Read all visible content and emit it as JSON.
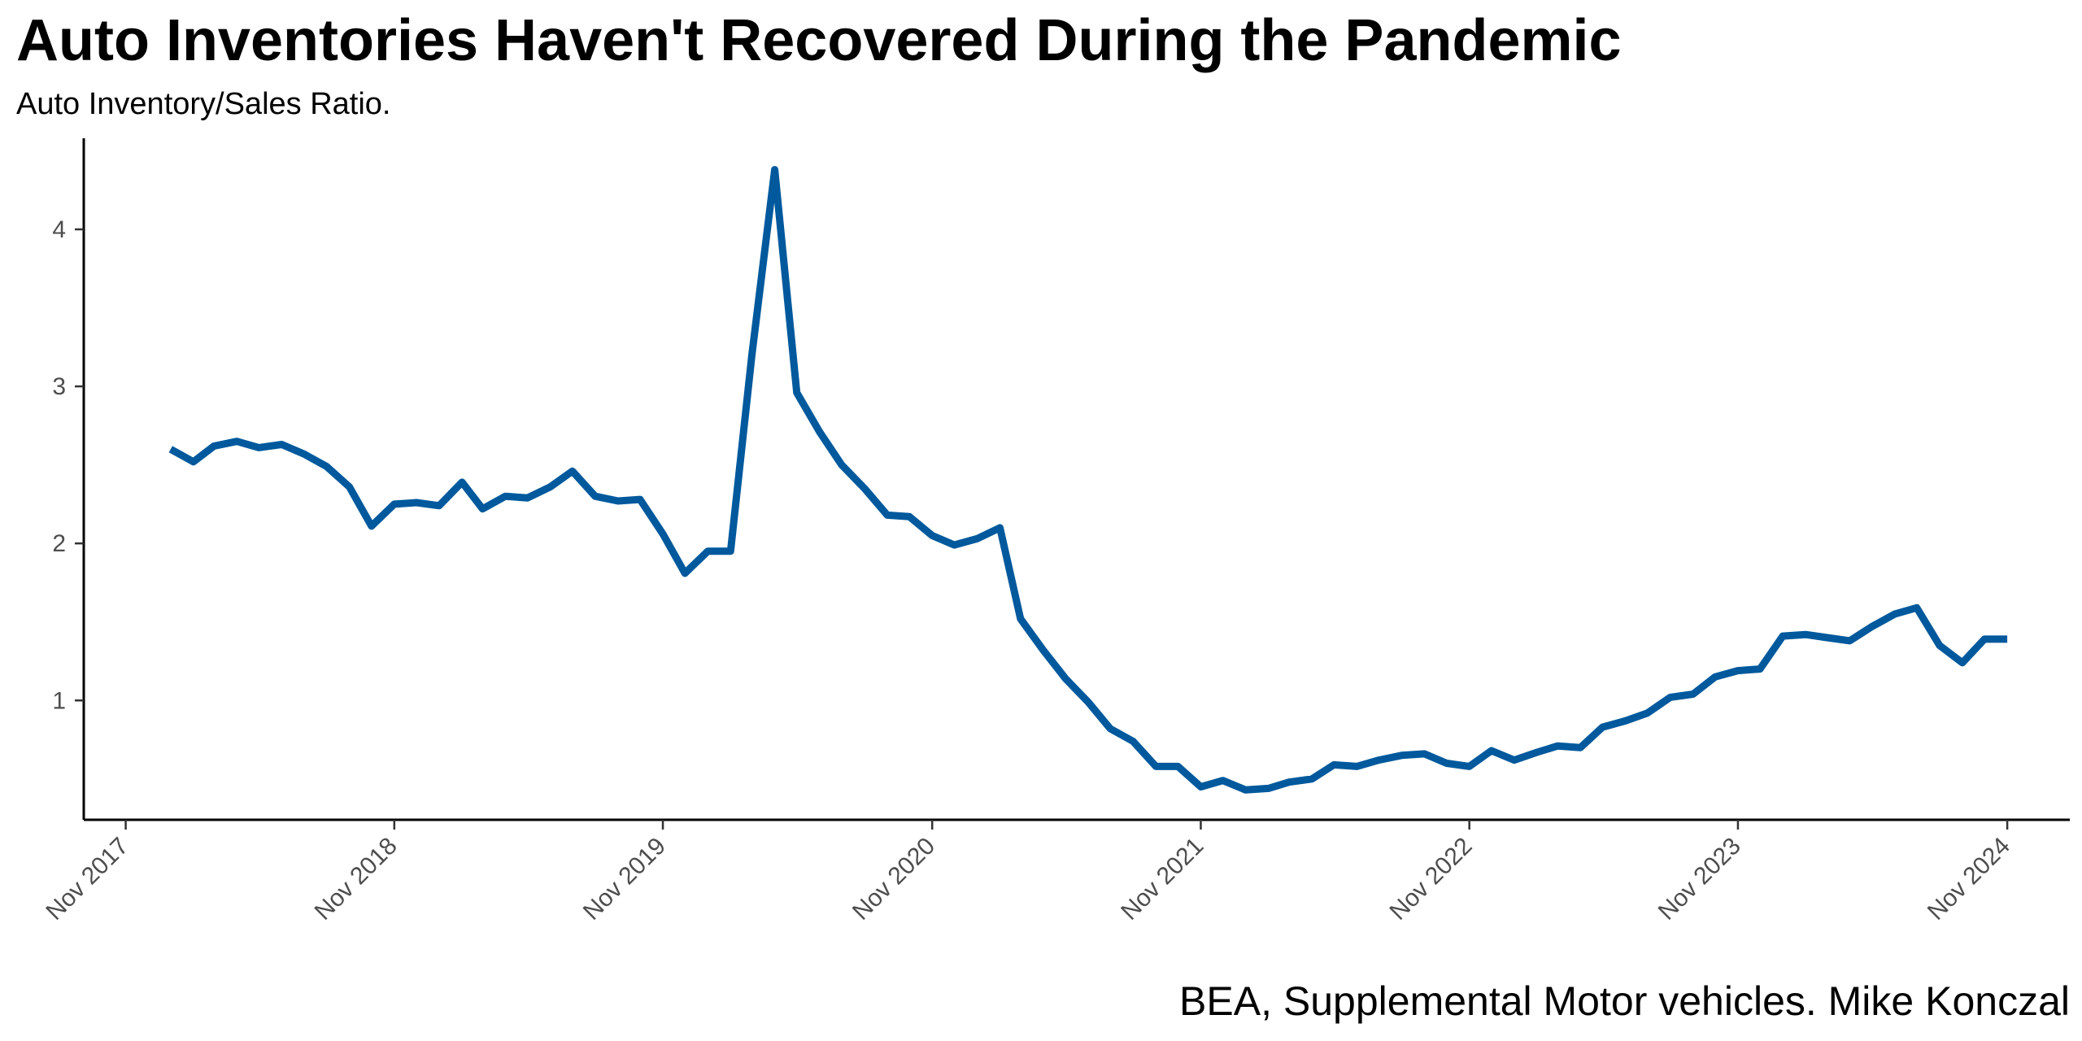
{
  "chart_data": {
    "type": "line",
    "title": "Auto Inventories Haven't Recovered During the Pandemic",
    "subtitle": "Auto Inventory/Sales Ratio.",
    "caption": "BEA, Supplemental Motor vehicles. Mike Konczal",
    "xlabel": "",
    "ylabel": "",
    "xlim": [
      "2017-09-05",
      "2025-01-25"
    ],
    "ylim": [
      0.24,
      4.58
    ],
    "x_ticks": [
      {
        "date": "2017-11-01",
        "label": "Nov 2017"
      },
      {
        "date": "2018-11-01",
        "label": "Nov 2018"
      },
      {
        "date": "2019-11-01",
        "label": "Nov 2019"
      },
      {
        "date": "2020-11-01",
        "label": "Nov 2020"
      },
      {
        "date": "2021-11-01",
        "label": "Nov 2021"
      },
      {
        "date": "2022-11-01",
        "label": "Nov 2022"
      },
      {
        "date": "2023-11-01",
        "label": "Nov 2023"
      },
      {
        "date": "2024-11-01",
        "label": "Nov 2024"
      }
    ],
    "y_ticks": [
      {
        "value": 1,
        "label": "1"
      },
      {
        "value": 2,
        "label": "2"
      },
      {
        "value": 3,
        "label": "3"
      },
      {
        "value": 4,
        "label": "4"
      }
    ],
    "grid": false,
    "line_color": "#00599C",
    "series": [
      {
        "x": [
          "2018-01-01",
          "2018-02-01",
          "2018-03-01",
          "2018-04-01",
          "2018-05-01",
          "2018-06-01",
          "2018-07-01",
          "2018-08-01",
          "2018-09-01",
          "2018-10-01",
          "2018-11-01",
          "2018-12-01",
          "2019-01-01",
          "2019-02-01",
          "2019-03-01",
          "2019-04-01",
          "2019-05-01",
          "2019-06-01",
          "2019-07-01",
          "2019-08-01",
          "2019-09-01",
          "2019-10-01",
          "2019-11-01",
          "2019-12-01",
          "2020-01-01",
          "2020-02-01",
          "2020-03-01",
          "2020-04-01",
          "2020-05-01",
          "2020-06-01",
          "2020-07-01",
          "2020-08-01",
          "2020-09-01",
          "2020-10-01",
          "2020-11-01",
          "2020-12-01",
          "2021-01-01",
          "2021-02-01",
          "2021-03-01",
          "2021-04-01",
          "2021-05-01",
          "2021-06-01",
          "2021-07-01",
          "2021-08-01",
          "2021-09-01",
          "2021-10-01",
          "2021-11-01",
          "2021-12-01",
          "2022-01-01",
          "2022-02-01",
          "2022-03-01",
          "2022-04-01",
          "2022-05-01",
          "2022-06-01",
          "2022-07-01",
          "2022-08-01",
          "2022-09-01",
          "2022-10-01",
          "2022-11-01",
          "2022-12-01",
          "2023-01-01",
          "2023-02-01",
          "2023-03-01",
          "2023-04-01",
          "2023-05-01",
          "2023-06-01",
          "2023-07-01",
          "2023-08-01",
          "2023-09-01",
          "2023-10-01",
          "2023-11-01",
          "2023-12-01",
          "2024-01-01",
          "2024-02-01",
          "2024-03-01",
          "2024-04-01",
          "2024-05-01",
          "2024-06-01",
          "2024-07-01",
          "2024-08-01",
          "2024-09-01",
          "2024-10-01",
          "2024-11-01",
          "2024-12-01",
          "2025-01-01"
        ],
        "values": [
          2.6,
          2.52,
          2.62,
          2.65,
          2.61,
          2.63,
          2.57,
          2.49,
          2.36,
          2.11,
          2.25,
          2.26,
          2.24,
          2.39,
          2.22,
          2.3,
          2.29,
          2.36,
          2.46,
          2.3,
          2.27,
          2.28,
          2.06,
          1.81,
          1.95,
          1.95,
          3.2,
          4.38,
          2.96,
          2.71,
          2.5,
          2.35,
          2.18,
          2.17,
          2.05,
          1.99,
          2.03,
          2.1,
          1.52,
          1.32,
          1.14,
          0.99,
          0.82,
          0.74,
          0.58,
          0.58,
          0.45,
          0.49,
          0.43,
          0.44,
          0.48,
          0.5,
          0.59,
          0.58,
          0.62,
          0.65,
          0.66,
          0.6,
          0.58,
          0.68,
          0.62,
          0.67,
          0.71,
          0.7,
          0.83,
          0.87,
          0.92,
          1.02,
          1.04,
          1.15,
          1.19,
          1.2,
          1.41,
          1.42,
          1.4,
          1.38,
          1.47,
          1.55,
          1.59,
          1.35,
          1.24,
          1.39,
          1.39,
          null,
          null
        ]
      }
    ]
  }
}
